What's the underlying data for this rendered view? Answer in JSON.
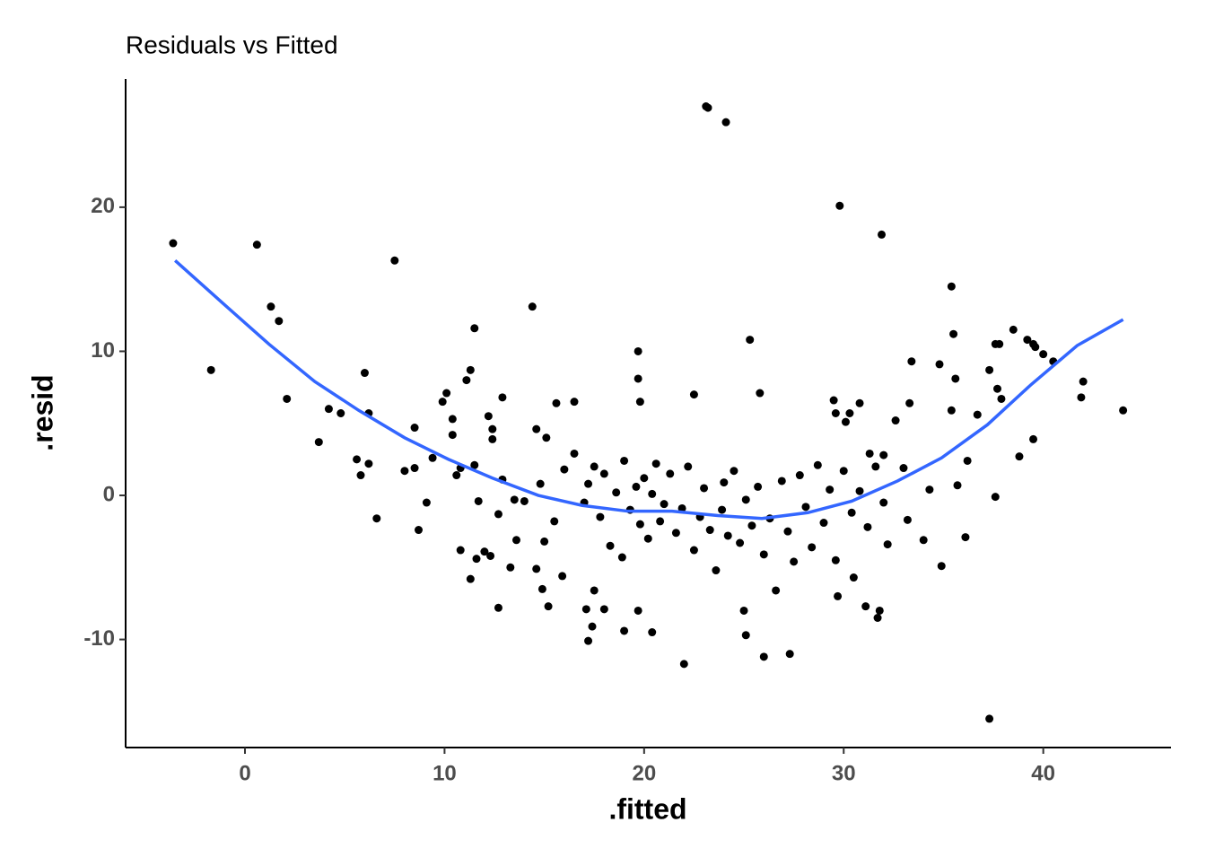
{
  "chart_data": {
    "type": "scatter",
    "title": "Residuals vs Fitted",
    "x_label": ".fitted",
    "y_label": ".resid",
    "xlim": [
      -5.98,
      46.4
    ],
    "ylim": [
      -17.5,
      28.9
    ],
    "xticks": [
      0,
      10,
      20,
      30,
      40
    ],
    "yticks": [
      -10,
      0,
      10,
      20
    ],
    "grid": false,
    "series": [
      {
        "type": "scatter",
        "color": "#000000",
        "x": [
          -3.6,
          -1.7,
          0.6,
          1.3,
          1.7,
          2.1,
          3.7,
          4.2,
          4.8,
          5.6,
          5.8,
          6.0,
          6.2,
          6.2,
          6.6,
          7.5,
          8.0,
          8.5,
          8.5,
          8.7,
          9.1,
          9.4,
          9.9,
          10.1,
          10.4,
          10.4,
          10.6,
          10.8,
          10.8,
          11.1,
          11.3,
          11.3,
          11.5,
          11.6,
          11.7,
          11.5,
          12.0,
          12.2,
          12.3,
          12.4,
          12.4,
          12.7,
          12.7,
          12.9,
          12.9,
          13.3,
          13.6,
          14.4,
          14.6,
          14.6,
          14.9,
          15.1,
          15.0,
          15.2,
          15.6,
          15.9,
          16.5,
          17.1,
          17.2,
          17.4,
          17.5,
          18.0,
          19.0,
          19.7,
          19.7,
          19.8,
          19.7,
          20.4,
          22.0,
          22.5,
          23.1,
          23.2,
          24.1,
          24.0,
          25.0,
          25.1,
          25.3,
          25.8,
          26.0,
          27.3,
          29.8,
          29.5,
          30.1,
          29.6,
          29.7,
          30.3,
          30.8,
          30.5,
          31.1,
          31.3,
          31.9,
          31.8,
          31.7,
          32.0,
          32.2,
          32.6,
          33.4,
          33.3,
          33.2,
          34.0,
          34.8,
          34.9,
          35.4,
          35.5,
          35.6,
          35.4,
          35.7,
          36.1,
          36.2,
          36.7,
          37.3,
          37.3,
          37.6,
          37.6,
          37.8,
          37.7,
          37.9,
          38.5,
          38.8,
          39.2,
          39.5,
          39.6,
          40.0,
          39.5,
          40.5,
          42.0,
          41.9,
          44.0,
          16.0,
          16.5,
          17.0,
          17.2,
          17.5,
          17.8,
          18.0,
          18.3,
          18.6,
          18.9,
          19.0,
          19.3,
          19.6,
          19.8,
          20.0,
          20.2,
          20.4,
          20.6,
          20.8,
          21.0,
          21.3,
          21.6,
          21.9,
          22.2,
          22.5,
          22.8,
          23.0,
          23.3,
          23.6,
          23.9,
          24.2,
          24.5,
          24.8,
          25.1,
          25.4,
          25.7,
          26.0,
          26.3,
          26.6,
          26.9,
          27.2,
          27.5,
          27.8,
          28.1,
          28.4,
          28.7,
          29.0,
          29.3,
          29.6,
          30.0,
          30.4,
          30.8,
          31.2,
          31.6,
          32.0,
          33.0,
          34.3,
          14.0,
          14.8,
          15.5,
          13.5
        ],
        "values": [
          17.5,
          8.7,
          17.4,
          13.1,
          12.1,
          6.7,
          3.7,
          6.0,
          5.7,
          2.5,
          1.4,
          8.5,
          2.2,
          5.7,
          -1.6,
          16.3,
          1.7,
          4.7,
          1.9,
          -2.4,
          -0.5,
          2.6,
          6.5,
          7.1,
          5.3,
          4.2,
          1.4,
          1.9,
          -3.8,
          8.0,
          8.7,
          -5.8,
          11.6,
          -4.4,
          -0.4,
          2.1,
          -3.9,
          5.5,
          -4.2,
          3.9,
          4.6,
          -1.3,
          -7.8,
          1.1,
          6.8,
          -5.0,
          -3.1,
          13.1,
          4.6,
          -5.1,
          -6.5,
          4.0,
          -3.2,
          -7.7,
          6.4,
          -5.6,
          6.5,
          -7.9,
          -10.1,
          -9.1,
          -6.6,
          -7.9,
          -9.4,
          10.0,
          8.1,
          6.5,
          -8.0,
          -9.5,
          -11.7,
          7.0,
          27.0,
          26.9,
          25.9,
          0.9,
          -8.0,
          -9.7,
          10.8,
          7.1,
          -11.2,
          -11.0,
          20.1,
          6.6,
          5.1,
          5.7,
          -7.0,
          5.7,
          6.4,
          -5.7,
          -7.7,
          2.9,
          18.1,
          -8.0,
          -8.5,
          2.8,
          -3.4,
          5.2,
          9.3,
          6.4,
          -1.7,
          -3.1,
          9.1,
          -4.9,
          14.5,
          11.2,
          8.1,
          5.9,
          0.7,
          -2.9,
          2.4,
          5.6,
          8.7,
          -15.5,
          -0.1,
          10.5,
          10.5,
          7.4,
          6.7,
          11.5,
          2.7,
          10.8,
          10.5,
          10.3,
          9.8,
          3.9,
          9.3,
          7.9,
          6.8,
          5.9,
          1.8,
          2.9,
          -0.5,
          0.8,
          2.0,
          -1.5,
          1.5,
          -3.5,
          0.2,
          -4.3,
          2.4,
          -1.0,
          0.6,
          -2.0,
          1.2,
          -3.0,
          0.1,
          2.2,
          -1.8,
          -0.6,
          1.5,
          -2.6,
          -0.9,
          2.0,
          -3.8,
          -1.5,
          0.5,
          -2.4,
          -5.2,
          -1.0,
          -2.8,
          1.7,
          -3.3,
          -0.3,
          -2.1,
          0.6,
          -4.1,
          -1.6,
          -6.6,
          1.0,
          -2.5,
          -4.6,
          1.4,
          -0.8,
          -3.6,
          2.1,
          -1.9,
          0.4,
          -4.5,
          1.7,
          -1.2,
          0.3,
          -2.2,
          2.0,
          -0.5,
          1.9,
          0.4,
          -0.4,
          0.8,
          -1.8,
          -0.3
        ]
      },
      {
        "type": "line",
        "color": "#3366ff",
        "x": [
          -3.5,
          -1.0,
          1.2,
          3.5,
          5.7,
          8.0,
          10.2,
          12.4,
          14.7,
          16.9,
          19.2,
          21.4,
          23.7,
          25.9,
          28.2,
          30.4,
          32.7,
          34.9,
          37.2,
          39.4,
          41.7,
          44.0
        ],
        "values": [
          16.3,
          13.2,
          10.5,
          7.9,
          5.9,
          4.0,
          2.5,
          1.2,
          0,
          -0.7,
          -1.1,
          -1.1,
          -1.4,
          -1.6,
          -1.2,
          -0.4,
          1.0,
          2.6,
          4.9,
          7.7,
          10.4,
          12.2
        ]
      }
    ]
  }
}
